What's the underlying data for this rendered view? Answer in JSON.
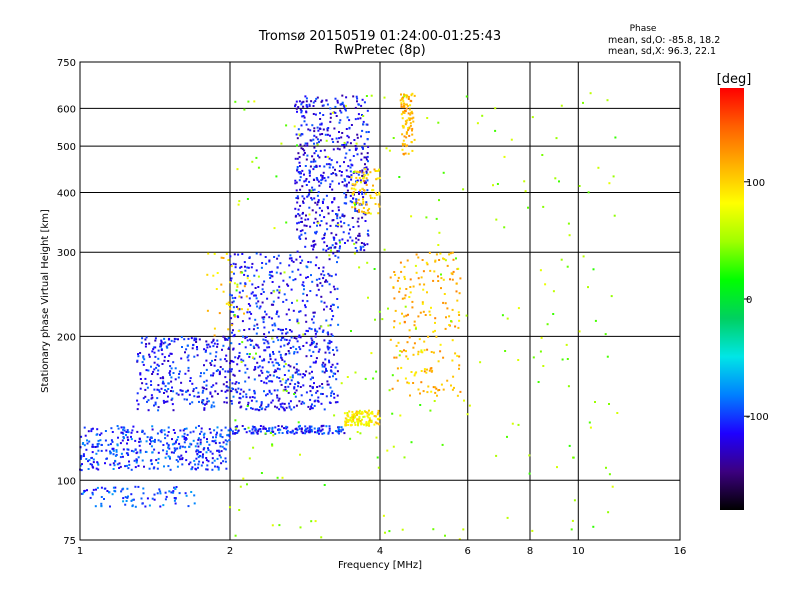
{
  "header": {
    "title_line1": "Tromsø 20150519 01:24:00-01:25:43",
    "title_line2": "RwPretec (8p)"
  },
  "phase_box": {
    "heading": "Phase",
    "line_o": "mean, sd,O: -85.8, 18.2",
    "line_x": "mean, sd,X: 96.3, 22.1"
  },
  "colorbar": {
    "label": "[deg]",
    "range": [
      -180,
      180
    ],
    "ticks": [
      "100",
      "0",
      "-100"
    ],
    "tick_values": [
      100,
      0,
      -100
    ],
    "colors": [
      "#000000",
      "#3c0080",
      "#1e00ff",
      "#0080ff",
      "#00e6e6",
      "#00d060",
      "#00ff00",
      "#a0ff00",
      "#ffff00",
      "#ffb000",
      "#ff6000",
      "#ff0000"
    ]
  },
  "chart_data": {
    "type": "scatter",
    "title": "Tromsø 20150519 01:24:00-01:25:43",
    "subtitle": "RwPretec (8p)",
    "xlabel": "Frequency [MHz]",
    "ylabel": "Stationary phase Virtual Height [km]",
    "x_scale": "log",
    "y_scale": "log",
    "xlim": [
      1,
      16
    ],
    "ylim": [
      75,
      750
    ],
    "x_ticks": [
      1,
      2,
      4,
      6,
      8,
      10,
      16
    ],
    "x_tick_labels": [
      "1",
      "2",
      "4",
      "6",
      "8",
      "10",
      "16"
    ],
    "y_ticks": [
      75,
      100,
      200,
      300,
      400,
      500,
      600,
      750
    ],
    "y_tick_labels": [
      "75",
      "100",
      "200",
      "300",
      "400",
      "500",
      "600",
      "750"
    ],
    "grid": true,
    "color_by": "phase_deg",
    "clusters": [
      {
        "name": "",
        "phase_deg": -100,
        "x_range": [
          1.0,
          2.0
        ],
        "y_range": [
          105,
          130
        ],
        "count": 400
      },
      {
        "name": "",
        "phase_deg": -95,
        "x_range": [
          1.0,
          1.7
        ],
        "y_range": [
          88,
          97
        ],
        "count": 90
      },
      {
        "name": "",
        "phase_deg": -110,
        "x_range": [
          1.3,
          3.3
        ],
        "y_range": [
          140,
          200
        ],
        "count": 700
      },
      {
        "name": "",
        "phase_deg": -105,
        "x_range": [
          2.0,
          3.4
        ],
        "y_range": [
          125,
          130
        ],
        "count": 150
      },
      {
        "name": "",
        "phase_deg": -110,
        "x_range": [
          2.0,
          3.3
        ],
        "y_range": [
          200,
          300
        ],
        "count": 280
      },
      {
        "name": "",
        "phase_deg": -115,
        "x_range": [
          2.7,
          3.8
        ],
        "y_range": [
          300,
          640
        ],
        "count": 560
      },
      {
        "name": "",
        "phase_deg": 90,
        "x_range": [
          3.4,
          4.0
        ],
        "y_range": [
          130,
          140
        ],
        "count": 130
      },
      {
        "name": "",
        "phase_deg": 100,
        "x_range": [
          3.5,
          4.0
        ],
        "y_range": [
          360,
          450
        ],
        "count": 80
      },
      {
        "name": "",
        "phase_deg": 110,
        "x_range": [
          4.4,
          4.7
        ],
        "y_range": [
          480,
          650
        ],
        "count": 90
      },
      {
        "name": "",
        "phase_deg": 110,
        "x_range": [
          4.2,
          5.8
        ],
        "y_range": [
          150,
          300
        ],
        "count": 200
      },
      {
        "name": "",
        "phase_deg": 100,
        "x_range": [
          1.8,
          2.2
        ],
        "y_range": [
          200,
          300
        ],
        "count": 40
      },
      {
        "name": "",
        "phase_deg": 50,
        "x_range": [
          2.0,
          12.0
        ],
        "y_range": [
          75,
          650
        ],
        "count": 260
      }
    ]
  }
}
